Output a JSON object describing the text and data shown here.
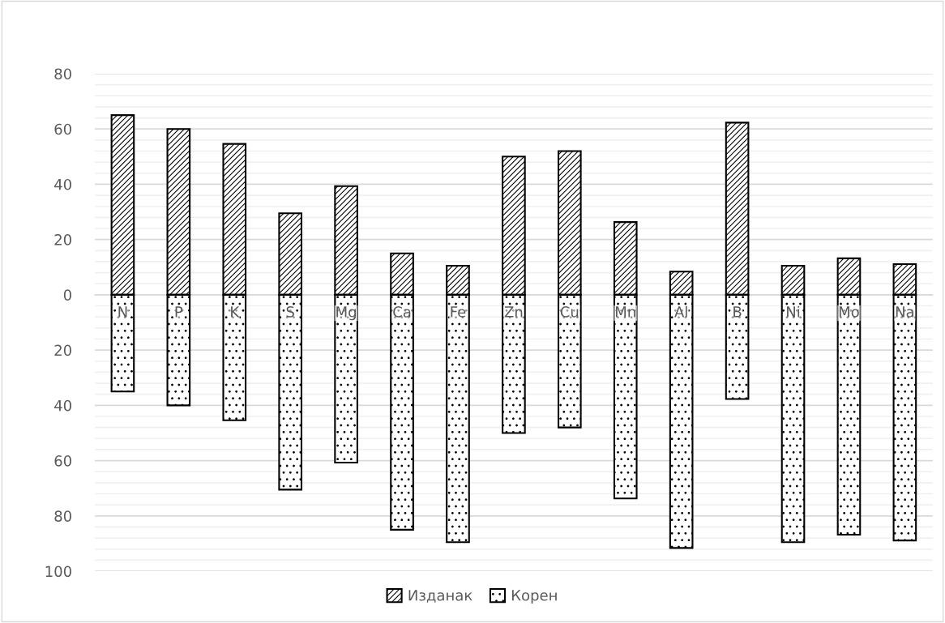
{
  "chart_data": {
    "type": "bar",
    "stacked": true,
    "categories": [
      "N",
      "P",
      "K",
      "S",
      "Mg",
      "Ca",
      "Fe",
      "Zn",
      "Cu",
      "Mn",
      "Al",
      "B",
      "Ni",
      "Mo",
      "Na"
    ],
    "series": [
      {
        "name": "Изданак",
        "color": "#000000",
        "values": [
          65,
          60,
          54.6,
          29.5,
          39.3,
          15,
          10.5,
          50,
          52,
          26.3,
          8.4,
          62.3,
          10.5,
          13.2,
          11.1
        ]
      },
      {
        "name": "Корен",
        "color": "#000000",
        "values": [
          -35,
          -40,
          -45.4,
          -70.5,
          -60.7,
          -85,
          -89.5,
          -50,
          -48,
          -73.7,
          -91.6,
          -37.7,
          -89.5,
          -86.8,
          -88.9
        ]
      }
    ],
    "ylim": [
      -100,
      80
    ],
    "yticks": [
      80,
      60,
      40,
      20,
      0,
      {
        "value": -20,
        "label": "20"
      },
      {
        "value": -40,
        "label": "40"
      },
      {
        "value": -60,
        "label": "60"
      },
      {
        "value": -80,
        "label": "80"
      },
      {
        "value": -100,
        "label": "100"
      }
    ],
    "grid": "y",
    "legend": "bottom"
  }
}
